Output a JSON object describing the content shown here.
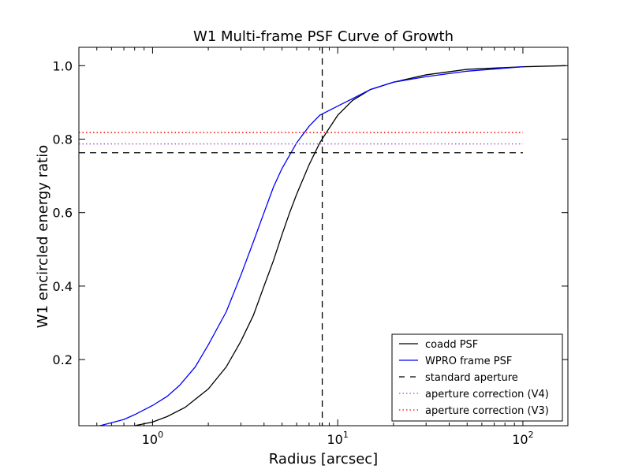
{
  "chart_data": {
    "type": "line",
    "title": "W1 Multi-frame PSF Curve of Growth",
    "xlabel": "Radius [arcsec]",
    "ylabel": "W1 encircled energy ratio",
    "xscale": "log",
    "xlim": [
      0.4,
      175
    ],
    "ylim": [
      0.02,
      1.05
    ],
    "xticks": [
      {
        "value": 1,
        "base": "10",
        "exp": "0"
      },
      {
        "value": 10,
        "base": "10",
        "exp": "1"
      },
      {
        "value": 100,
        "base": "10",
        "exp": "2"
      }
    ],
    "yticks": [
      {
        "value": 0.2,
        "label": "0.2"
      },
      {
        "value": 0.4,
        "label": "0.4"
      },
      {
        "value": 0.6,
        "label": "0.6"
      },
      {
        "value": 0.8,
        "label": "0.8"
      },
      {
        "value": 1.0,
        "label": "1.0"
      }
    ],
    "grid": false,
    "legend_position": "lower-right",
    "series": [
      {
        "name": "coadd PSF",
        "color": "#000000",
        "style": "solid",
        "points": [
          [
            0.8,
            0.02
          ],
          [
            1.0,
            0.03
          ],
          [
            1.2,
            0.045
          ],
          [
            1.5,
            0.07
          ],
          [
            2.0,
            0.12
          ],
          [
            2.5,
            0.18
          ],
          [
            3.0,
            0.25
          ],
          [
            3.5,
            0.32
          ],
          [
            4.0,
            0.4
          ],
          [
            4.5,
            0.47
          ],
          [
            5.0,
            0.54
          ],
          [
            5.5,
            0.6
          ],
          [
            6.0,
            0.65
          ],
          [
            7.0,
            0.73
          ],
          [
            8.0,
            0.79
          ],
          [
            9.0,
            0.83
          ],
          [
            10.0,
            0.865
          ],
          [
            12.0,
            0.905
          ],
          [
            15.0,
            0.935
          ],
          [
            20.0,
            0.955
          ],
          [
            30.0,
            0.975
          ],
          [
            50.0,
            0.99
          ],
          [
            100.0,
            0.997
          ],
          [
            170.0,
            1.0
          ]
        ]
      },
      {
        "name": "WPRO frame PSF",
        "color": "#0000ff",
        "style": "solid",
        "points": [
          [
            0.52,
            0.02
          ],
          [
            0.6,
            0.028
          ],
          [
            0.7,
            0.037
          ],
          [
            0.8,
            0.05
          ],
          [
            1.0,
            0.075
          ],
          [
            1.2,
            0.1
          ],
          [
            1.4,
            0.13
          ],
          [
            1.7,
            0.18
          ],
          [
            2.0,
            0.24
          ],
          [
            2.5,
            0.33
          ],
          [
            3.0,
            0.43
          ],
          [
            3.5,
            0.52
          ],
          [
            4.0,
            0.6
          ],
          [
            4.5,
            0.67
          ],
          [
            5.0,
            0.72
          ],
          [
            6.0,
            0.79
          ],
          [
            7.0,
            0.835
          ],
          [
            8.0,
            0.865
          ],
          [
            10.0,
            0.89
          ],
          [
            12.0,
            0.91
          ],
          [
            15.0,
            0.935
          ],
          [
            20.0,
            0.955
          ],
          [
            30.0,
            0.97
          ],
          [
            50.0,
            0.985
          ],
          [
            100.0,
            0.997
          ]
        ]
      },
      {
        "name": "standard aperture",
        "color": "#000000",
        "style": "dashed",
        "points": [
          [
            0.4,
            0.763
          ],
          [
            100,
            0.763
          ]
        ],
        "vertical_x": 8.25
      },
      {
        "name": "aperture correction (V4)",
        "color": "#9a4bd6",
        "style": "dotted",
        "points": [
          [
            0.4,
            0.787
          ],
          [
            100,
            0.787
          ]
        ]
      },
      {
        "name": "aperture correction (V3)",
        "color": "#ff0000",
        "style": "dotted",
        "points": [
          [
            0.4,
            0.818
          ],
          [
            100,
            0.818
          ]
        ]
      }
    ]
  }
}
